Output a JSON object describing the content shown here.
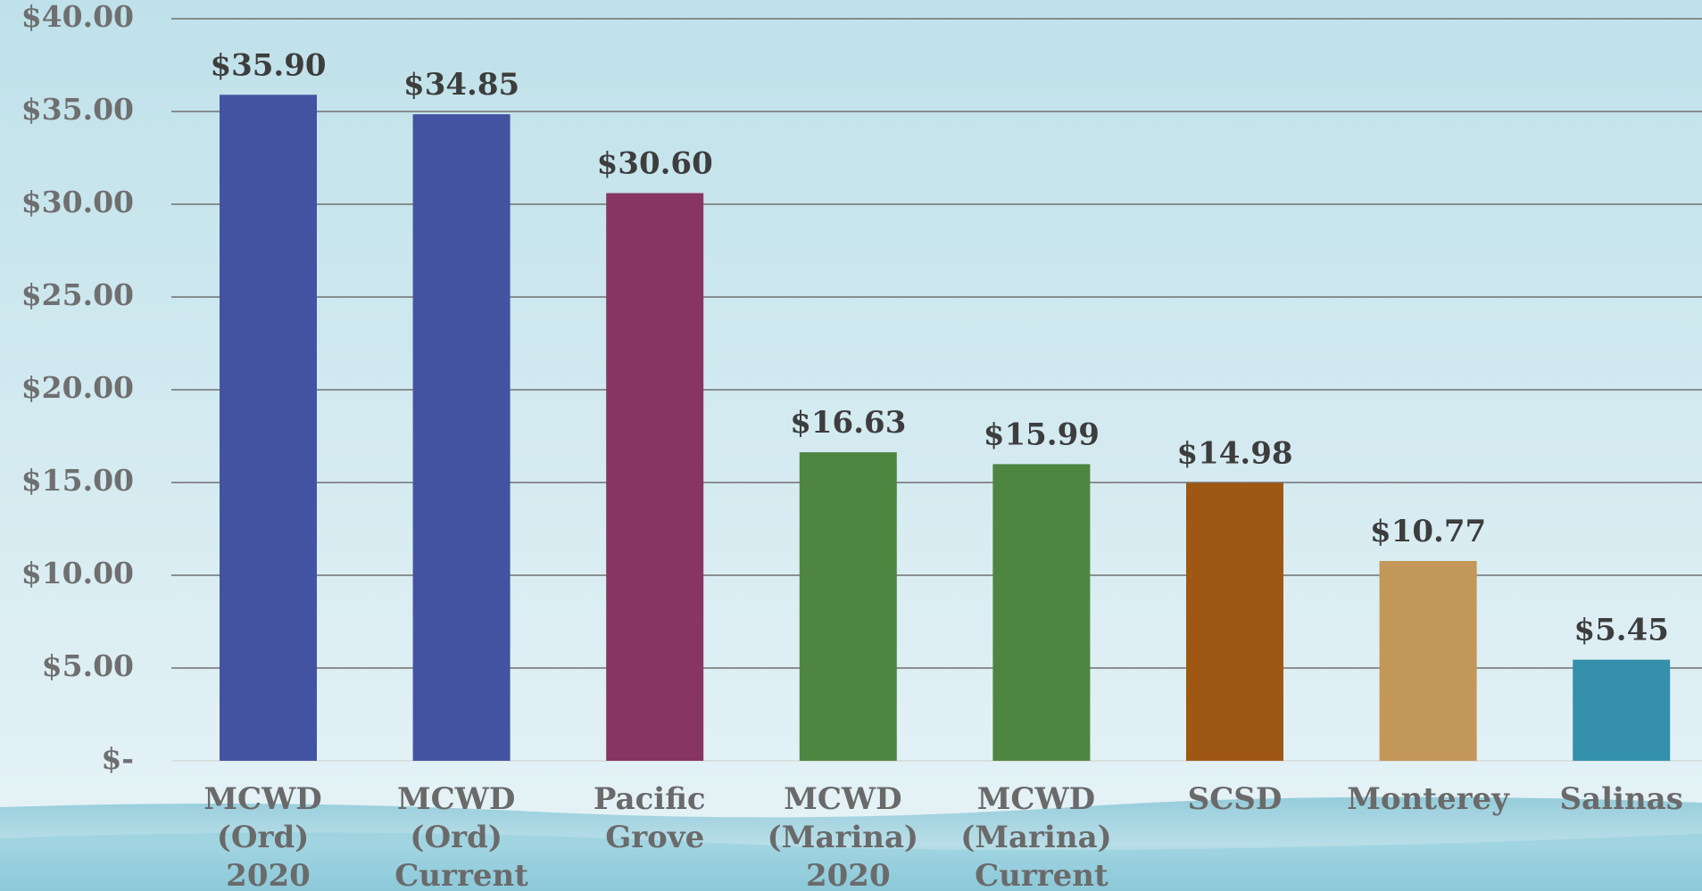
{
  "chart_data": {
    "type": "bar",
    "categories": [
      "MCWD (Ord) 2020",
      "MCWD (Ord) Current",
      "Pacific Grove",
      "MCWD (Marina) 2020",
      "MCWD (Marina) Current",
      "SCSD",
      "Monterey",
      "Salinas"
    ],
    "values": [
      35.9,
      34.85,
      30.6,
      16.63,
      15.99,
      14.98,
      10.77,
      5.45
    ],
    "value_labels": [
      "$35.90",
      "$34.85",
      "$30.60",
      "$16.63",
      "$15.99",
      "$14.98",
      "$10.77",
      "$5.45"
    ],
    "colors": [
      "#4353a1",
      "#4353a1",
      "#873563",
      "#4e8540",
      "#4e8540",
      "#9e5813",
      "#c39758",
      "#3590ab"
    ],
    "ylim": [
      0,
      40
    ],
    "yticks": [
      {
        "value": 0,
        "label": "$-"
      },
      {
        "value": 5,
        "label": "$5.00"
      },
      {
        "value": 10,
        "label": "$10.00"
      },
      {
        "value": 15,
        "label": "$15.00"
      },
      {
        "value": 20,
        "label": "$20.00"
      },
      {
        "value": 25,
        "label": "$25.00"
      },
      {
        "value": 30,
        "label": "$30.00"
      },
      {
        "value": 35,
        "label": "$35.00"
      },
      {
        "value": 40,
        "label": "$40.00"
      }
    ],
    "grid": true
  }
}
